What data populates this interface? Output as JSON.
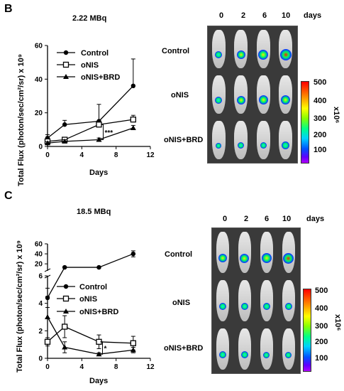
{
  "panels": [
    {
      "letter": "B",
      "chart_title": "2.22 MBq",
      "ylabel": "Total Flux (photon/sec/cm²/sr) x 10⁹",
      "xlabel": "Days",
      "legend": [
        "Control",
        "oNIS",
        "oNIS+BRD"
      ],
      "significance": "***",
      "image_days": [
        "0",
        "2",
        "6",
        "10"
      ],
      "image_days_unit": "days",
      "image_rows": [
        "Control",
        "oNIS",
        "oNIS+BRD"
      ],
      "colorbar_ticks": [
        "500",
        "400",
        "300",
        "200",
        "100"
      ],
      "colorbar_unit": "x10⁶"
    },
    {
      "letter": "C",
      "chart_title": "18.5 MBq",
      "ylabel": "Total Flux (photon/sec/cm²/sr) x 10⁹",
      "xlabel": "Days",
      "legend": [
        "Control",
        "oNIS",
        "oNIS+BRD"
      ],
      "significance": "*",
      "image_days": [
        "0",
        "2",
        "6",
        "10"
      ],
      "image_days_unit": "days",
      "image_rows": [
        "Control",
        "oNIS",
        "oNIS+BRD"
      ],
      "colorbar_ticks": [
        "500",
        "400",
        "300",
        "200",
        "100"
      ],
      "colorbar_unit": "x10⁶"
    }
  ],
  "chart_data": [
    {
      "type": "line",
      "title": "2.22 MBq",
      "xlabel": "Days",
      "ylabel": "Total Flux (photon/sec/cm²/sr) x 10⁹",
      "x": [
        0,
        2,
        6,
        10
      ],
      "xlim": [
        0,
        12
      ],
      "xticks": [
        0,
        4,
        8,
        12
      ],
      "ylim": [
        0,
        60
      ],
      "yticks": [
        0,
        20,
        40,
        60
      ],
      "series": [
        {
          "name": "Control",
          "marker": "circle",
          "values": [
            5,
            13,
            15,
            36
          ],
          "errors": [
            2,
            2.5,
            10,
            16
          ]
        },
        {
          "name": "oNIS",
          "marker": "square",
          "values": [
            3,
            4,
            13,
            16
          ],
          "errors": [
            1,
            1,
            2,
            2.5
          ]
        },
        {
          "name": "oNIS+BRD",
          "marker": "triangle",
          "values": [
            2,
            3,
            4,
            11
          ],
          "errors": [
            0.8,
            1,
            1,
            1.5
          ]
        }
      ],
      "annotation": "***",
      "legend_position": "top-left"
    },
    {
      "type": "line",
      "title": "18.5 MBq",
      "xlabel": "Days",
      "ylabel": "Total Flux (photon/sec/cm²/sr) x 10⁹",
      "x": [
        0,
        2,
        6,
        10
      ],
      "xlim": [
        0,
        12
      ],
      "xticks": [
        0,
        4,
        8,
        12
      ],
      "y_axis": "broken",
      "ylim_lower": [
        0,
        6
      ],
      "yticks_lower": [
        0,
        2,
        4,
        6
      ],
      "ylim_upper": [
        6,
        60
      ],
      "yticks_upper": [
        20,
        40,
        60
      ],
      "series": [
        {
          "name": "Control",
          "marker": "circle",
          "values": [
            4.4,
            13,
            13,
            40
          ],
          "errors": [
            0.7,
            0.8,
            0.8,
            6
          ]
        },
        {
          "name": "oNIS",
          "marker": "square",
          "values": [
            1.2,
            2.3,
            1.2,
            1.1
          ],
          "errors": [
            0.3,
            0.8,
            0.5,
            0.5
          ]
        },
        {
          "name": "oNIS+BRD",
          "marker": "triangle",
          "values": [
            3.0,
            0.8,
            0.3,
            0.6
          ],
          "errors": [
            1.5,
            0.4,
            0.1,
            0.2
          ]
        }
      ],
      "annotation": "*",
      "legend_position": "center-right"
    }
  ]
}
